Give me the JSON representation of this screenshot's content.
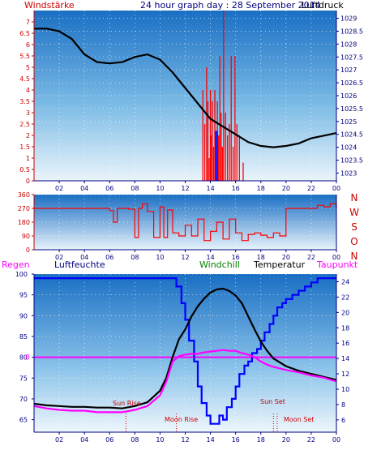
{
  "header": {
    "left_label": "Windstärke",
    "center_title": "24 hour graph day : 28 September 2014",
    "right_label": "Luftdruck"
  },
  "bottom_labels": {
    "regen": "Regen",
    "luftfeuchte": "Luftfeuchte",
    "windchill": "Windchill",
    "temperatur": "Temperatur",
    "taupunkt": "Taupunkt"
  },
  "wind_dir_labels": [
    "N",
    "W",
    "S",
    "O",
    "N"
  ],
  "astro": {
    "sun_rise": "Sun Rise",
    "moon_rise": "Moon Rise",
    "sun_set": "Sun Set",
    "moon_set": "Moon Set",
    "sun_rise_hour": 7.3,
    "moon_rise_hour": 11.3,
    "sun_set_hour": 19.3,
    "moon_set_hour": 19.0
  },
  "colors": {
    "wind": "#ff0000",
    "pressure": "#000000",
    "humidity": "#0000ff",
    "temperature": "#000000",
    "dewpoint": "#ff00ff",
    "axis_blue": "#000080",
    "axis_red": "#cc0000"
  },
  "chart_data": [
    {
      "type": "line",
      "name": "wind-pressure",
      "x_ticks": [
        "02",
        "04",
        "06",
        "08",
        "10",
        "12",
        "14",
        "16",
        "18",
        "20",
        "22",
        "00"
      ],
      "y_left_ticks": [
        "0",
        "0.5",
        "1",
        "1.5",
        "2",
        "2.5",
        "3",
        "3.5",
        "4",
        "4.5",
        "5",
        "5.5",
        "6",
        "6.5",
        "7"
      ],
      "y_right_ticks": [
        "1023",
        "1023.5",
        "1024",
        "1024.5",
        "1025",
        "1025.5",
        "1026",
        "1026.5",
        "1027",
        "1027.5",
        "1028",
        "1028.5",
        "1029"
      ],
      "xlim": [
        0,
        24
      ],
      "ylim_left": [
        0,
        7.5
      ],
      "ylim_right": [
        1022.7,
        1029.3
      ],
      "pressure": {
        "x": [
          0,
          1,
          2,
          3,
          4,
          5,
          6,
          7,
          8,
          9,
          10,
          11,
          12,
          13,
          14,
          15,
          16,
          17,
          18,
          19,
          20,
          21,
          22,
          23,
          24
        ],
        "y": [
          1028.6,
          1028.6,
          1028.5,
          1028.2,
          1027.6,
          1027.3,
          1027.25,
          1027.3,
          1027.5,
          1027.6,
          1027.4,
          1026.9,
          1026.3,
          1025.7,
          1025.1,
          1024.8,
          1024.5,
          1024.2,
          1024.05,
          1024.0,
          1024.05,
          1024.15,
          1024.35,
          1024.45,
          1024.55
        ]
      },
      "wind": {
        "x": [
          13.4,
          13.55,
          13.7,
          13.8,
          13.9,
          14.0,
          14.05,
          14.15,
          14.25,
          14.35,
          14.45,
          14.55,
          14.65,
          14.75,
          14.85,
          14.95,
          15.05,
          15.2,
          15.35,
          15.5,
          15.65,
          15.8,
          15.95,
          16.1,
          16.3,
          16.6
        ],
        "y": [
          4.0,
          2.5,
          5.0,
          3.5,
          1.0,
          4.0,
          2.0,
          3.5,
          1.5,
          4.0,
          1.0,
          3.5,
          2.0,
          5.5,
          3.0,
          1.5,
          7.5,
          3.0,
          2.0,
          2.5,
          5.5,
          1.5,
          5.5,
          2.5,
          2.0,
          0.8
        ]
      }
    },
    {
      "type": "line",
      "name": "wind-direction",
      "x_ticks": [
        "02",
        "04",
        "06",
        "08",
        "10",
        "12",
        "14",
        "16",
        "18",
        "20",
        "22",
        "00"
      ],
      "y_ticks": [
        "0",
        "90",
        "180",
        "270",
        "360"
      ],
      "xlim": [
        0,
        24
      ],
      "ylim": [
        0,
        360
      ],
      "x": [
        0,
        2,
        4,
        6,
        6.3,
        6.6,
        7.5,
        8,
        8.3,
        8.6,
        9,
        9.5,
        10.0,
        10.3,
        10.6,
        11,
        11.5,
        12,
        12.5,
        13,
        13.5,
        14,
        14.5,
        15,
        15.5,
        16,
        16.5,
        17,
        17.5,
        18,
        18.5,
        19,
        19.5,
        20,
        21,
        22,
        22.5,
        23,
        23.5,
        24
      ],
      "y": [
        270,
        270,
        270,
        255,
        180,
        270,
        265,
        80,
        270,
        300,
        250,
        80,
        280,
        80,
        260,
        110,
        90,
        160,
        90,
        200,
        60,
        120,
        180,
        70,
        200,
        110,
        60,
        100,
        110,
        95,
        80,
        110,
        90,
        270,
        270,
        270,
        290,
        280,
        300,
        270
      ]
    },
    {
      "type": "line",
      "name": "humidity-temperature",
      "x_ticks": [
        "02",
        "04",
        "06",
        "08",
        "10",
        "12",
        "14",
        "16",
        "18",
        "20",
        "22",
        "00"
      ],
      "y_left_ticks": [
        "65",
        "70",
        "75",
        "80",
        "85",
        "90",
        "95",
        "100"
      ],
      "y_right_ticks": [
        "6",
        "8",
        "10",
        "12",
        "14",
        "16",
        "18",
        "20",
        "22",
        "24"
      ],
      "xlim": [
        0,
        24
      ],
      "ylim_left": [
        62,
        100
      ],
      "ylim_right": [
        4.4,
        25
      ],
      "regen_value": "0",
      "regen_axis_value": 80,
      "humidity": {
        "x": [
          0,
          2,
          4,
          6,
          8,
          10,
          11,
          11.3,
          11.7,
          12,
          12.3,
          12.7,
          13,
          13.3,
          13.7,
          14,
          14.3,
          14.7,
          15,
          15.3,
          15.7,
          16,
          16.3,
          16.7,
          17,
          17.3,
          17.7,
          18,
          18.3,
          18.7,
          19,
          19.3,
          19.7,
          20,
          20.5,
          21,
          21.5,
          22,
          22.5,
          23,
          24
        ],
        "y": [
          99,
          99,
          99,
          99,
          99,
          99,
          99,
          97,
          93,
          89,
          84,
          79,
          73,
          69,
          66,
          64,
          64,
          66,
          65,
          68,
          70,
          73,
          76,
          78,
          79,
          81,
          82,
          84,
          86,
          88,
          90,
          92,
          93,
          94,
          95,
          96,
          97,
          98,
          99,
          99,
          99
        ]
      },
      "temperature": {
        "x": [
          0,
          1,
          2,
          3,
          4,
          5,
          6,
          7,
          8,
          9,
          10,
          10.5,
          11,
          11.5,
          12,
          12.5,
          13,
          13.5,
          14,
          14.5,
          15,
          15.5,
          16,
          16.5,
          17,
          17.5,
          18,
          18.5,
          19,
          20,
          21,
          22,
          23,
          24
        ],
        "y": [
          8.1,
          7.9,
          7.8,
          7.7,
          7.7,
          7.6,
          7.6,
          7.5,
          7.8,
          8.3,
          9.8,
          11.5,
          14.2,
          16.5,
          17.8,
          19.5,
          20.8,
          21.8,
          22.6,
          23.0,
          23.1,
          22.8,
          22.2,
          21.2,
          19.5,
          17.8,
          16.2,
          15.0,
          14.0,
          13.0,
          12.4,
          12.0,
          11.6,
          11.2
        ]
      },
      "dewpoint": {
        "x": [
          0,
          1,
          2,
          3,
          4,
          5,
          6,
          7,
          8,
          9,
          10,
          10.5,
          11,
          11.5,
          12,
          12.5,
          13,
          13.5,
          14,
          14.5,
          15,
          15.5,
          16,
          16.5,
          17,
          17.5,
          18,
          18.5,
          19,
          20,
          21,
          22,
          23,
          24
        ],
        "y": [
          7.8,
          7.5,
          7.3,
          7.2,
          7.2,
          7.0,
          7.0,
          7.0,
          7.3,
          7.8,
          9.2,
          11.0,
          13.6,
          14.3,
          14.5,
          14.6,
          14.6,
          14.8,
          14.9,
          15.0,
          15.1,
          15.0,
          15.0,
          14.7,
          14.5,
          14.2,
          13.6,
          13.2,
          12.9,
          12.5,
          12.2,
          11.8,
          11.5,
          11.0
        ]
      }
    }
  ]
}
